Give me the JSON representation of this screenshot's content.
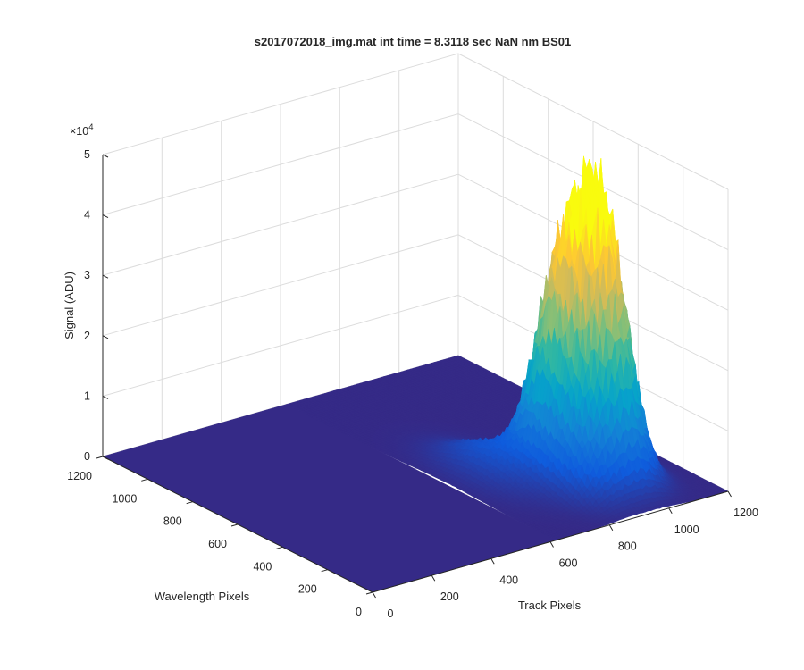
{
  "chart_data": {
    "type": "surface",
    "title": "s2017072018_img.mat int time = 8.3118 sec  NaN nm BS01",
    "xlabel": "Track Pixels",
    "ylabel": "Wavelength Pixels",
    "zlabel": "Signal (ADU)",
    "z_exponent_label": "×10",
    "z_exponent_value": "4",
    "xlim": [
      0,
      1200
    ],
    "ylim": [
      0,
      1200
    ],
    "zlim": [
      0,
      50000
    ],
    "x_ticks": [
      "0",
      "200",
      "400",
      "600",
      "800",
      "1000",
      "1200"
    ],
    "y_ticks": [
      "0",
      "200",
      "400",
      "600",
      "800",
      "1000",
      "1200"
    ],
    "z_ticks": [
      "0",
      "1",
      "2",
      "3",
      "4",
      "5"
    ],
    "grid": true,
    "colormap": "parula",
    "colors": [
      "#352a87",
      "#0f5cdd",
      "#1481d6",
      "#06a4ca",
      "#2eb7a4",
      "#87bf77",
      "#d1bb59",
      "#fec832",
      "#f9fb0e"
    ],
    "baseline_signal": 0,
    "peaks": [
      {
        "track_pixel": 970,
        "wavelength_pixel": 270,
        "signal": 42500
      },
      {
        "track_pixel": 900,
        "wavelength_pixel": 380,
        "signal": 24500
      },
      {
        "track_pixel": 760,
        "wavelength_pixel": 480,
        "signal": 6000
      }
    ]
  }
}
